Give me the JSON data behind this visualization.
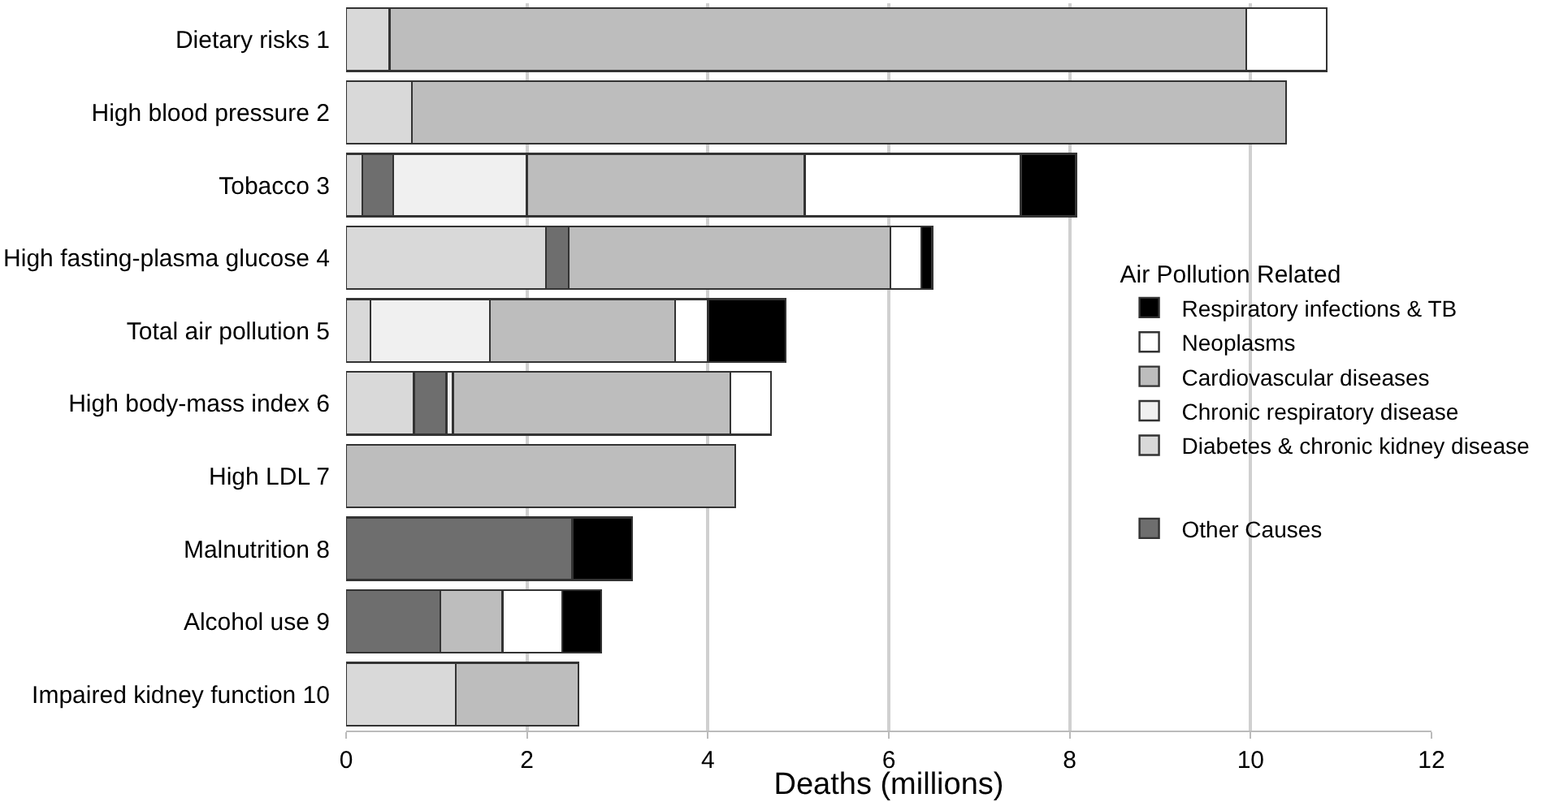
{
  "chart_data": {
    "type": "bar",
    "orientation": "horizontal",
    "stacked": true,
    "categories": [
      "Dietary risks 1",
      "High blood pressure 2",
      "Tobacco 3",
      "High fasting-plasma glucose 4",
      "Total air pollution 5",
      "High body-mass index 6",
      "High LDL 7",
      "Malnutrition 8",
      "Alcohol use 9",
      "Impaired kidney function 10"
    ],
    "series": [
      {
        "name": "Diabetes & chronic kidney disease",
        "color": "#d9d9d9",
        "values": [
          0.48,
          0.73,
          0.18,
          2.21,
          0.27,
          0.75,
          null,
          null,
          null,
          1.21
        ]
      },
      {
        "name": "Other Causes",
        "color": "#6e6e6e",
        "values": [
          null,
          null,
          0.34,
          0.25,
          null,
          0.36,
          null,
          2.5,
          1.04,
          null
        ]
      },
      {
        "name": "Chronic respiratory disease",
        "color": "#f0f0f0",
        "values": [
          null,
          null,
          1.48,
          null,
          1.32,
          0.07,
          null,
          null,
          null,
          null
        ]
      },
      {
        "name": "Cardiovascular diseases",
        "color": "#bdbdbd",
        "values": [
          9.47,
          9.66,
          3.07,
          3.56,
          2.05,
          3.07,
          4.3,
          null,
          0.69,
          1.36
        ]
      },
      {
        "name": "Neoplasms",
        "color": "#ffffff",
        "values": [
          0.89,
          null,
          2.39,
          0.34,
          0.36,
          0.45,
          null,
          null,
          0.66,
          null
        ]
      },
      {
        "name": "Respiratory infections & TB",
        "color": "#000000",
        "values": [
          null,
          null,
          0.61,
          0.12,
          0.86,
          null,
          null,
          0.66,
          0.43,
          null
        ]
      }
    ],
    "xlabel": "Deaths (millions)",
    "xlim": [
      0,
      12
    ],
    "xticks": [
      0,
      2,
      4,
      6,
      8,
      10,
      12
    ],
    "grid": "x",
    "legend": "right",
    "legend_title": "Air Pollution Related"
  }
}
